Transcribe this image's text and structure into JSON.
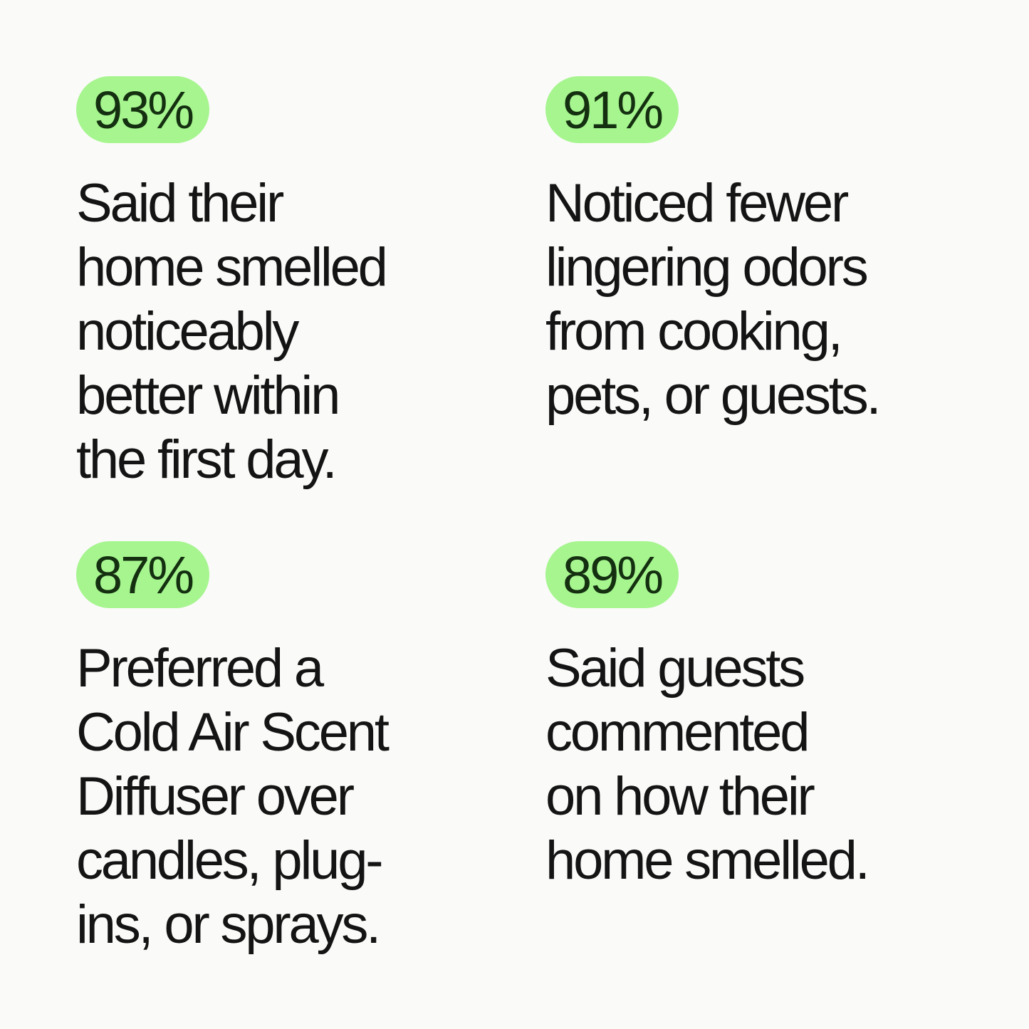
{
  "stats": [
    {
      "value": "93%",
      "lines": [
        "Said their",
        "home smelled",
        "noticeably",
        "better within",
        "the first day."
      ]
    },
    {
      "value": "91%",
      "lines": [
        "Noticed fewer",
        "lingering odors",
        "from cooking,",
        "pets, or guests."
      ]
    },
    {
      "value": "87%",
      "lines": [
        "Preferred a",
        "Cold Air Scent",
        "Diffuser over",
        "candles, plug-",
        "ins, or sprays."
      ]
    },
    {
      "value": "89%",
      "lines": [
        "Said guests",
        "commented",
        "on how their",
        "home smelled."
      ]
    }
  ]
}
